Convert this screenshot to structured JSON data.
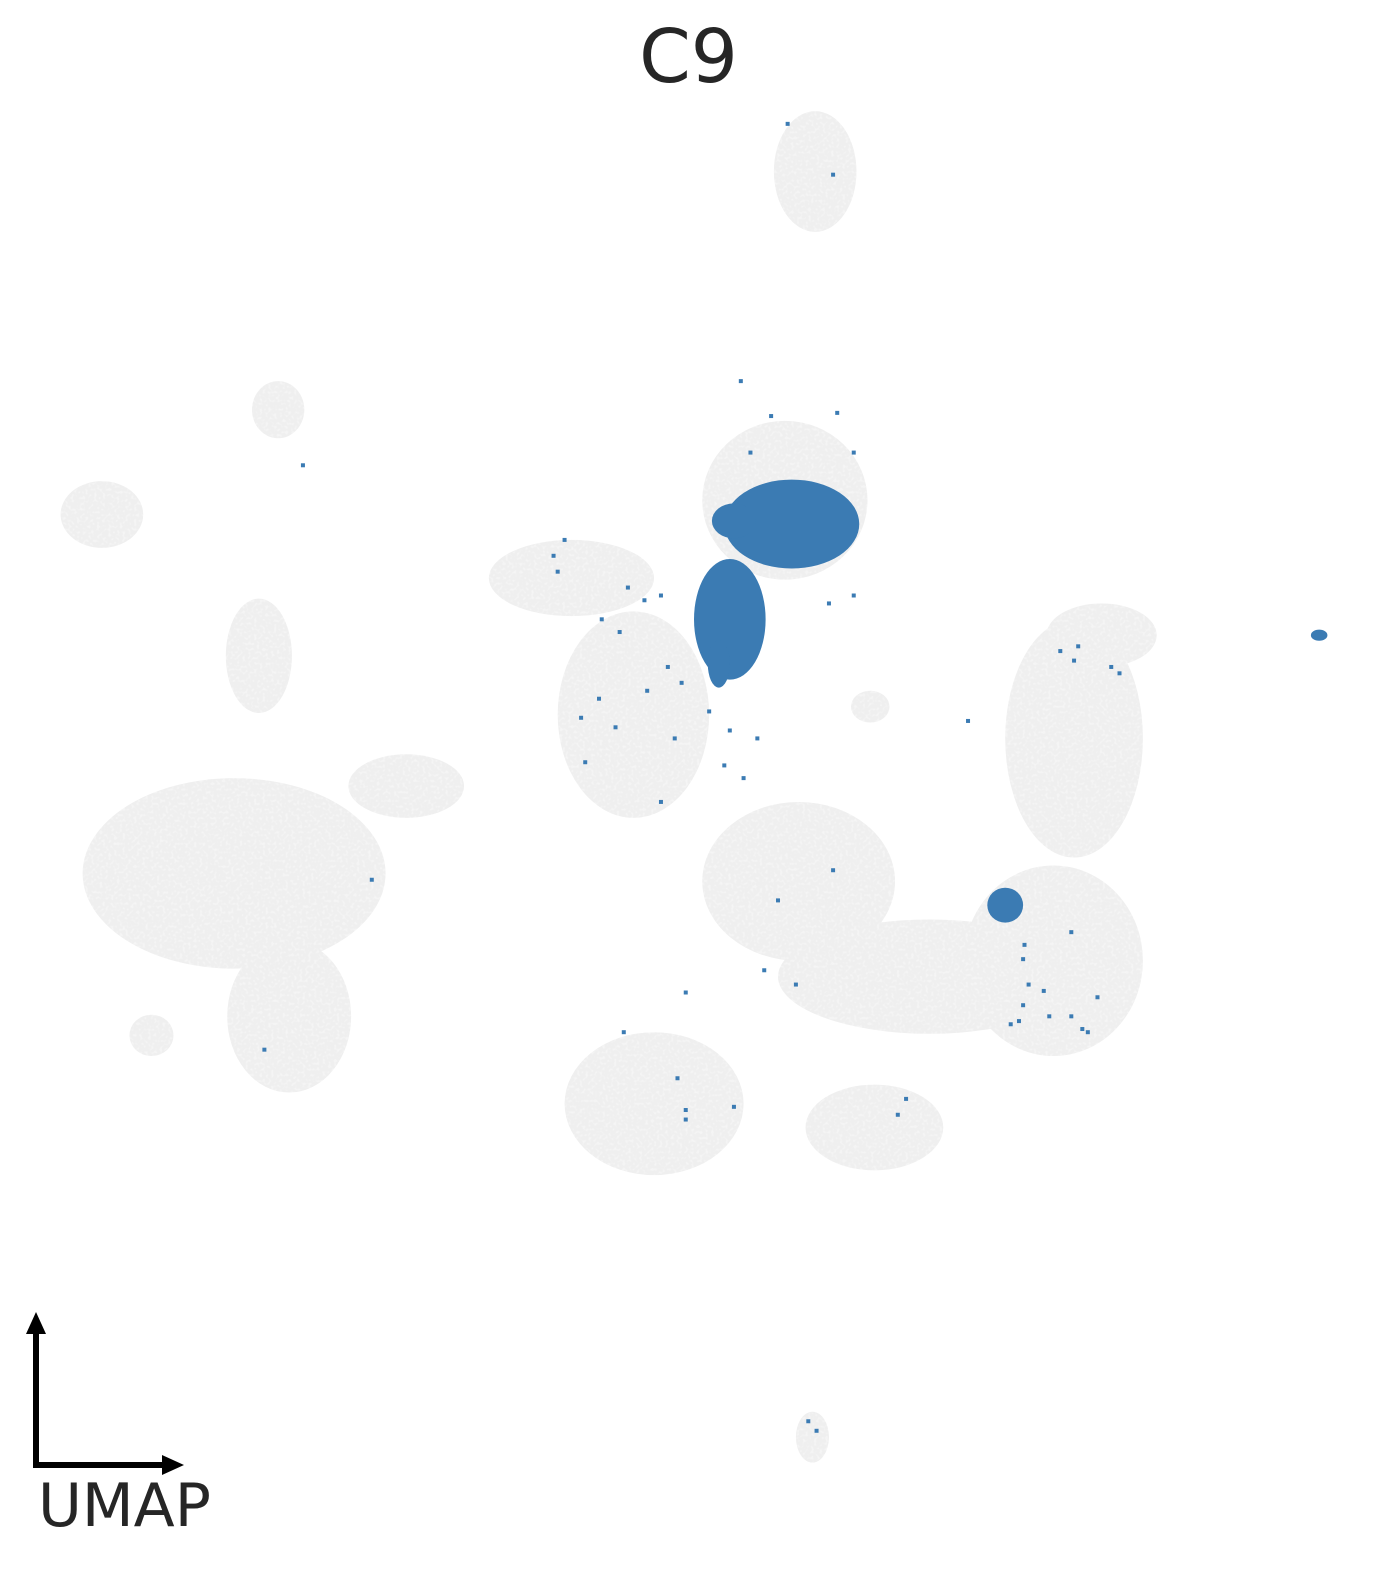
{
  "chart_data": {
    "type": "scatter",
    "title": "C9",
    "xlabel": "",
    "ylabel": "",
    "axis_indicator_label": "UMAP",
    "grid": false,
    "legend": "none",
    "colors": {
      "highlight": "#3b7bb3",
      "background": "#efefef",
      "axis": "#000000"
    },
    "xlim": [
      0,
      100
    ],
    "ylim": [
      0,
      100
    ],
    "background_regions": [
      {
        "name": "top-island",
        "cx": 59.2,
        "cy": 89.2,
        "rx": 3.0,
        "ry": 3.8
      },
      {
        "name": "upper-left-bulb",
        "cx": 20.2,
        "cy": 74.2,
        "rx": 1.9,
        "ry": 1.8
      },
      {
        "name": "upper-left-wing",
        "cx": 7.4,
        "cy": 67.6,
        "rx": 3.0,
        "ry": 2.1
      },
      {
        "name": "left-stem",
        "cx": 18.8,
        "cy": 58.7,
        "rx": 2.4,
        "ry": 3.6
      },
      {
        "name": "left-mass",
        "cx": 17.0,
        "cy": 45.0,
        "rx": 11.0,
        "ry": 6.0
      },
      {
        "name": "left-lower",
        "cx": 21.0,
        "cy": 36.0,
        "rx": 4.5,
        "ry": 4.8
      },
      {
        "name": "left-foot",
        "cx": 11.0,
        "cy": 34.8,
        "rx": 1.6,
        "ry": 1.3
      },
      {
        "name": "left-arm",
        "cx": 29.5,
        "cy": 50.5,
        "rx": 4.2,
        "ry": 2.0
      },
      {
        "name": "center-left-lobe",
        "cx": 41.5,
        "cy": 63.6,
        "rx": 6.0,
        "ry": 2.4
      },
      {
        "name": "center-column",
        "cx": 46.0,
        "cy": 55.0,
        "rx": 5.5,
        "ry": 6.5
      },
      {
        "name": "center-top",
        "cx": 57.0,
        "cy": 68.5,
        "rx": 6.0,
        "ry": 5.0
      },
      {
        "name": "center-small",
        "cx": 63.2,
        "cy": 55.5,
        "rx": 1.4,
        "ry": 1.0
      },
      {
        "name": "center-diag",
        "cx": 58.0,
        "cy": 44.5,
        "rx": 7.0,
        "ry": 5.0
      },
      {
        "name": "bottom-band",
        "cx": 67.5,
        "cy": 38.5,
        "rx": 11.0,
        "ry": 3.6
      },
      {
        "name": "bottom-left-lobe",
        "cx": 47.5,
        "cy": 30.5,
        "rx": 6.5,
        "ry": 4.5
      },
      {
        "name": "bottom-middle-lobe",
        "cx": 63.5,
        "cy": 29.0,
        "rx": 5.0,
        "ry": 2.7
      },
      {
        "name": "right-upper-arm",
        "cx": 78.0,
        "cy": 53.5,
        "rx": 5.0,
        "ry": 7.5
      },
      {
        "name": "right-top",
        "cx": 80.0,
        "cy": 60.0,
        "rx": 4.0,
        "ry": 2.0
      },
      {
        "name": "right-mass",
        "cx": 76.5,
        "cy": 39.5,
        "rx": 6.5,
        "ry": 6.0
      },
      {
        "name": "bottom-island",
        "cx": 59.0,
        "cy": 9.5,
        "rx": 1.2,
        "ry": 1.6
      }
    ],
    "highlight_regions": [
      {
        "name": "main-blob-upper",
        "cx": 57.5,
        "cy": 67.0,
        "rx": 4.9,
        "ry": 2.8
      },
      {
        "name": "main-blob-neck",
        "cx": 53.0,
        "cy": 61.0,
        "rx": 2.6,
        "ry": 3.8
      },
      {
        "name": "main-blob-tail",
        "cx": 52.2,
        "cy": 58.2,
        "rx": 0.8,
        "ry": 1.5
      },
      {
        "name": "main-blob-left",
        "cx": 53.3,
        "cy": 67.2,
        "rx": 1.6,
        "ry": 1.1
      },
      {
        "name": "right-blob",
        "cx": 73.0,
        "cy": 43.0,
        "rx": 1.3,
        "ry": 1.1
      },
      {
        "name": "far-right-blob",
        "cx": 95.8,
        "cy": 60.0,
        "rx": 0.6,
        "ry": 0.35
      }
    ],
    "highlight_scatter": [
      [
        57.2,
        92.2
      ],
      [
        60.5,
        89.0
      ],
      [
        53.8,
        76.0
      ],
      [
        56.0,
        73.8
      ],
      [
        60.8,
        74.0
      ],
      [
        54.5,
        71.5
      ],
      [
        62.0,
        71.5
      ],
      [
        22.0,
        70.7
      ],
      [
        41.0,
        66.0
      ],
      [
        40.2,
        65.0
      ],
      [
        40.5,
        64.0
      ],
      [
        45.6,
        63.0
      ],
      [
        46.8,
        62.2
      ],
      [
        43.7,
        61.0
      ],
      [
        45.0,
        60.2
      ],
      [
        62.0,
        62.5
      ],
      [
        60.2,
        62.0
      ],
      [
        48.0,
        62.5
      ],
      [
        48.5,
        58.0
      ],
      [
        49.5,
        57.0
      ],
      [
        47.0,
        56.5
      ],
      [
        43.5,
        56.0
      ],
      [
        42.2,
        54.8
      ],
      [
        44.7,
        54.2
      ],
      [
        42.5,
        52.0
      ],
      [
        49.0,
        53.5
      ],
      [
        51.5,
        55.2
      ],
      [
        53.0,
        54.0
      ],
      [
        55.0,
        53.5
      ],
      [
        52.6,
        51.8
      ],
      [
        48.0,
        49.5
      ],
      [
        54.0,
        51.0
      ],
      [
        60.5,
        45.2
      ],
      [
        56.5,
        43.3
      ],
      [
        27.0,
        44.6
      ],
      [
        55.5,
        38.9
      ],
      [
        57.8,
        38.0
      ],
      [
        49.8,
        37.5
      ],
      [
        45.3,
        35.0
      ],
      [
        19.2,
        33.9
      ],
      [
        49.2,
        32.1
      ],
      [
        49.8,
        30.1
      ],
      [
        53.3,
        30.3
      ],
      [
        49.8,
        29.5
      ],
      [
        65.8,
        30.8
      ],
      [
        65.2,
        29.8
      ],
      [
        74.4,
        40.5
      ],
      [
        74.3,
        39.6
      ],
      [
        74.7,
        38.0
      ],
      [
        74.3,
        36.7
      ],
      [
        75.8,
        37.6
      ],
      [
        74.0,
        35.7
      ],
      [
        77.8,
        41.3
      ],
      [
        79.7,
        37.2
      ],
      [
        78.6,
        35.2
      ],
      [
        77.8,
        36.0
      ],
      [
        79.0,
        35.0
      ],
      [
        73.4,
        35.5
      ],
      [
        76.2,
        36.0
      ],
      [
        70.3,
        54.6
      ],
      [
        77.0,
        59.0
      ],
      [
        78.3,
        59.3
      ],
      [
        80.7,
        58.0
      ],
      [
        81.3,
        57.6
      ],
      [
        78.0,
        58.4
      ],
      [
        58.7,
        10.5
      ],
      [
        59.3,
        9.9
      ]
    ]
  }
}
